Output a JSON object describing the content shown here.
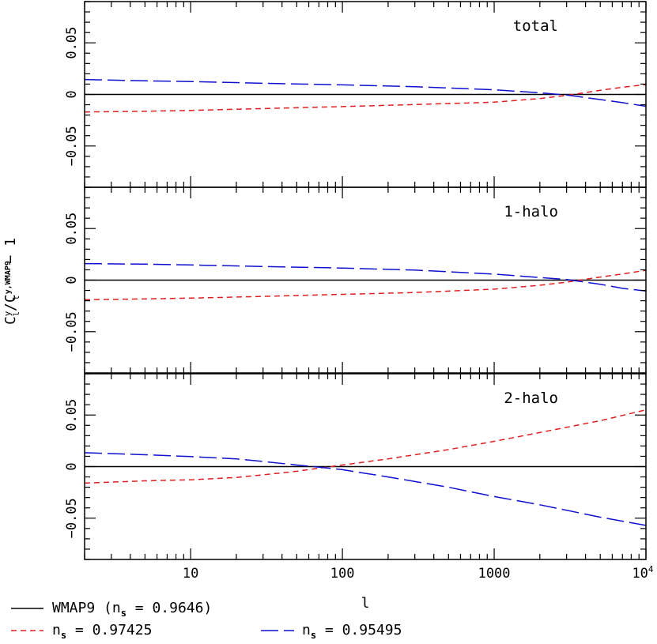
{
  "chart_data": [
    {
      "type": "line",
      "panel_label": "total",
      "x_scale": "log",
      "xlim": [
        2,
        10000
      ],
      "ylim": [
        -0.09,
        0.09
      ],
      "y_ticks": [
        0.05,
        0,
        -0.05
      ],
      "series": [
        {
          "color": "#000000",
          "dash": "solid",
          "x": [
            2,
            10000
          ],
          "y": [
            0,
            0
          ]
        },
        {
          "color": "#e02020",
          "dash": "short-dash",
          "x": [
            2,
            5,
            10,
            30,
            100,
            300,
            1000,
            2000,
            3000,
            5000,
            7000,
            10000
          ],
          "y": [
            -0.017,
            -0.0163,
            -0.0155,
            -0.0137,
            -0.0118,
            -0.0098,
            -0.0075,
            -0.004,
            -0.001,
            0.004,
            0.007,
            0.0095
          ]
        },
        {
          "color": "#1010d0",
          "dash": "long-dash",
          "x": [
            2,
            5,
            10,
            30,
            100,
            300,
            1000,
            2000,
            3000,
            5000,
            7000,
            10000
          ],
          "y": [
            0.0145,
            0.0132,
            0.0125,
            0.0108,
            0.0093,
            0.0075,
            0.0045,
            0.0015,
            -0.0005,
            -0.005,
            -0.008,
            -0.0115
          ]
        }
      ]
    },
    {
      "type": "line",
      "panel_label": "1-halo",
      "x_scale": "log",
      "xlim": [
        2,
        10000
      ],
      "ylim": [
        -0.09,
        0.09
      ],
      "y_ticks": [
        0.05,
        0,
        -0.05
      ],
      "series": [
        {
          "color": "#000000",
          "dash": "solid",
          "x": [
            2,
            10000
          ],
          "y": [
            0,
            0
          ]
        },
        {
          "color": "#e02020",
          "dash": "short-dash",
          "x": [
            2,
            5,
            10,
            30,
            100,
            300,
            1000,
            2000,
            3000,
            5000,
            7000,
            10000
          ],
          "y": [
            -0.019,
            -0.0182,
            -0.0175,
            -0.0158,
            -0.0138,
            -0.012,
            -0.0087,
            -0.005,
            -0.002,
            0.003,
            0.006,
            0.0095
          ]
        },
        {
          "color": "#1010d0",
          "dash": "long-dash",
          "x": [
            2,
            5,
            10,
            30,
            100,
            300,
            1000,
            2000,
            3000,
            5000,
            7000,
            10000
          ],
          "y": [
            0.016,
            0.0155,
            0.0147,
            0.0132,
            0.0117,
            0.0097,
            0.0058,
            0.0025,
            0.0005,
            -0.004,
            -0.008,
            -0.0105
          ]
        }
      ]
    },
    {
      "type": "line",
      "panel_label": "2-halo",
      "x_scale": "log",
      "xlim": [
        2,
        10000
      ],
      "ylim": [
        -0.09,
        0.09
      ],
      "y_ticks": [
        0.05,
        0,
        -0.05
      ],
      "series": [
        {
          "color": "#000000",
          "dash": "solid",
          "x": [
            2,
            10000
          ],
          "y": [
            0,
            0
          ]
        },
        {
          "color": "#e02020",
          "dash": "short-dash",
          "x": [
            2,
            5,
            10,
            20,
            30,
            50,
            70,
            100,
            200,
            500,
            1000,
            2000,
            5000,
            10000
          ],
          "y": [
            -0.016,
            -0.0138,
            -0.0128,
            -0.0105,
            -0.008,
            -0.0045,
            -0.0015,
            0.0015,
            0.0075,
            0.0165,
            0.0245,
            0.033,
            0.0445,
            0.055
          ]
        },
        {
          "color": "#1010d0",
          "dash": "long-dash",
          "x": [
            2,
            5,
            10,
            20,
            30,
            50,
            70,
            100,
            200,
            500,
            1000,
            2000,
            5000,
            10000
          ],
          "y": [
            0.0135,
            0.0115,
            0.0097,
            0.0075,
            0.005,
            0.0015,
            -0.0005,
            -0.003,
            -0.01,
            -0.02,
            -0.029,
            -0.037,
            -0.049,
            -0.057
          ]
        }
      ]
    }
  ],
  "axes": {
    "xlabel": "l",
    "ylabel_main": "C",
    "ylabel_sup1": "y",
    "ylabel_sub1": "l",
    "ylabel_slash": "/C",
    "ylabel_sup2": "y,WMAP9",
    "ylabel_sub2": "l",
    "ylabel_tail": "− 1",
    "x_tick_labels": [
      {
        "value": 10,
        "text": "10"
      },
      {
        "value": 100,
        "text": "100"
      },
      {
        "value": 1000,
        "text": "1000"
      }
    ],
    "x_tick_last": {
      "value": 10000,
      "base": "10",
      "exp": "4"
    },
    "y_tick_texts": {
      "0.05": "0.05",
      "0": "0",
      "-0.05": "−0.05"
    }
  },
  "legend": {
    "placement": "bottom",
    "entries": [
      {
        "color": "#000000",
        "dash": "solid",
        "text_before": "WMAP9 (n",
        "sub": "s",
        "text_after": " = 0.9646)"
      },
      {
        "color": "#e02020",
        "dash": "short-dash",
        "text_before": "n",
        "sub": "s",
        "text_after": " = 0.97425"
      },
      {
        "color": "#1010d0",
        "dash": "long-dash",
        "text_before": "n",
        "sub": "s",
        "text_after": " = 0.95495"
      }
    ]
  }
}
